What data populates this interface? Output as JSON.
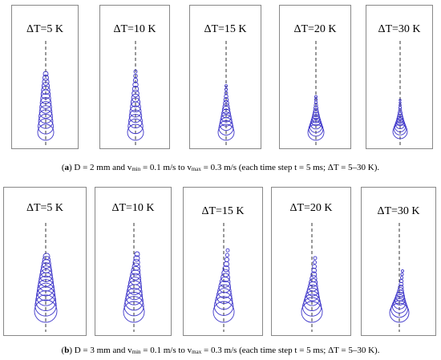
{
  "figure": {
    "row_a": {
      "panels": [
        {
          "label": "ΔT=5 K",
          "bubbles": 14
        },
        {
          "label": "ΔT=10 K",
          "bubbles": 14
        },
        {
          "label": "ΔT=15 K",
          "bubbles": 14
        },
        {
          "label": "ΔT=20 K",
          "bubbles": 14
        },
        {
          "label": "ΔT=30 K",
          "bubbles": 14
        }
      ],
      "caption": {
        "letter": "a",
        "p1": ") D = 2 mm and v",
        "sub_min": "min",
        "p2": " = 0.1 m/s to v",
        "sub_max": "max",
        "p3": " = 0.3 m/s (each time step t = 5 ms; ΔT = 5–30 K)."
      }
    },
    "row_b": {
      "panels": [
        {
          "label": "ΔT=5 K",
          "bubbles": 14
        },
        {
          "label": "ΔT=10 K",
          "bubbles": 14
        },
        {
          "label": "ΔT=15 K",
          "bubbles": 14
        },
        {
          "label": "ΔT=20 K",
          "bubbles": 14
        },
        {
          "label": "ΔT=30 K",
          "bubbles": 14
        }
      ],
      "caption": {
        "letter": "b",
        "p1": ") D = 3 mm and v",
        "sub_min": "min",
        "p2": " = 0.1 m/s to v",
        "sub_max": "max",
        "p3": " = 0.3 m/s (each time step t = 5 ms; ΔT = 5–30 K)."
      }
    },
    "colors": {
      "bubble": "#3d35c9",
      "axis": "#333333",
      "border": "#888888"
    }
  }
}
